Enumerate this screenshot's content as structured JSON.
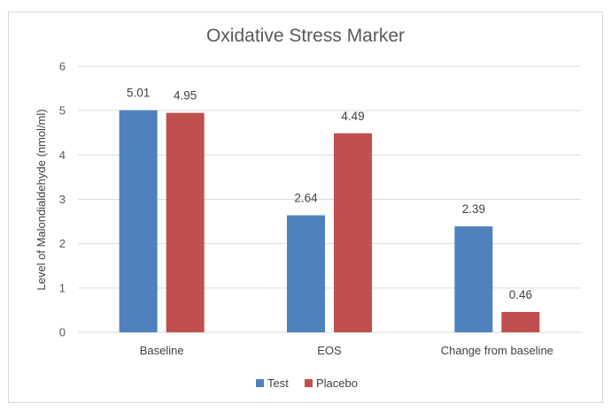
{
  "chart_data": {
    "type": "bar",
    "title": "Oxidative Stress Marker",
    "xlabel": "",
    "ylabel": "Level of Malondialdehyde (nmol/ml)",
    "categories": [
      "Baseline",
      "EOS",
      "Change from baseline"
    ],
    "series": [
      {
        "name": "Test",
        "values": [
          5.01,
          2.64,
          2.39
        ],
        "labels": [
          "5.01",
          "2.64",
          "2.39"
        ],
        "color": "#4f81bd"
      },
      {
        "name": "Placebo",
        "values": [
          4.95,
          4.49,
          0.46
        ],
        "labels": [
          "4.95",
          "4.49",
          "0.46"
        ],
        "color": "#c0504d"
      }
    ],
    "ylim": [
      0,
      6
    ],
    "yticks": [
      "0",
      "1",
      "2",
      "3",
      "4",
      "5",
      "6"
    ],
    "grid": true,
    "legend": "bottom"
  }
}
